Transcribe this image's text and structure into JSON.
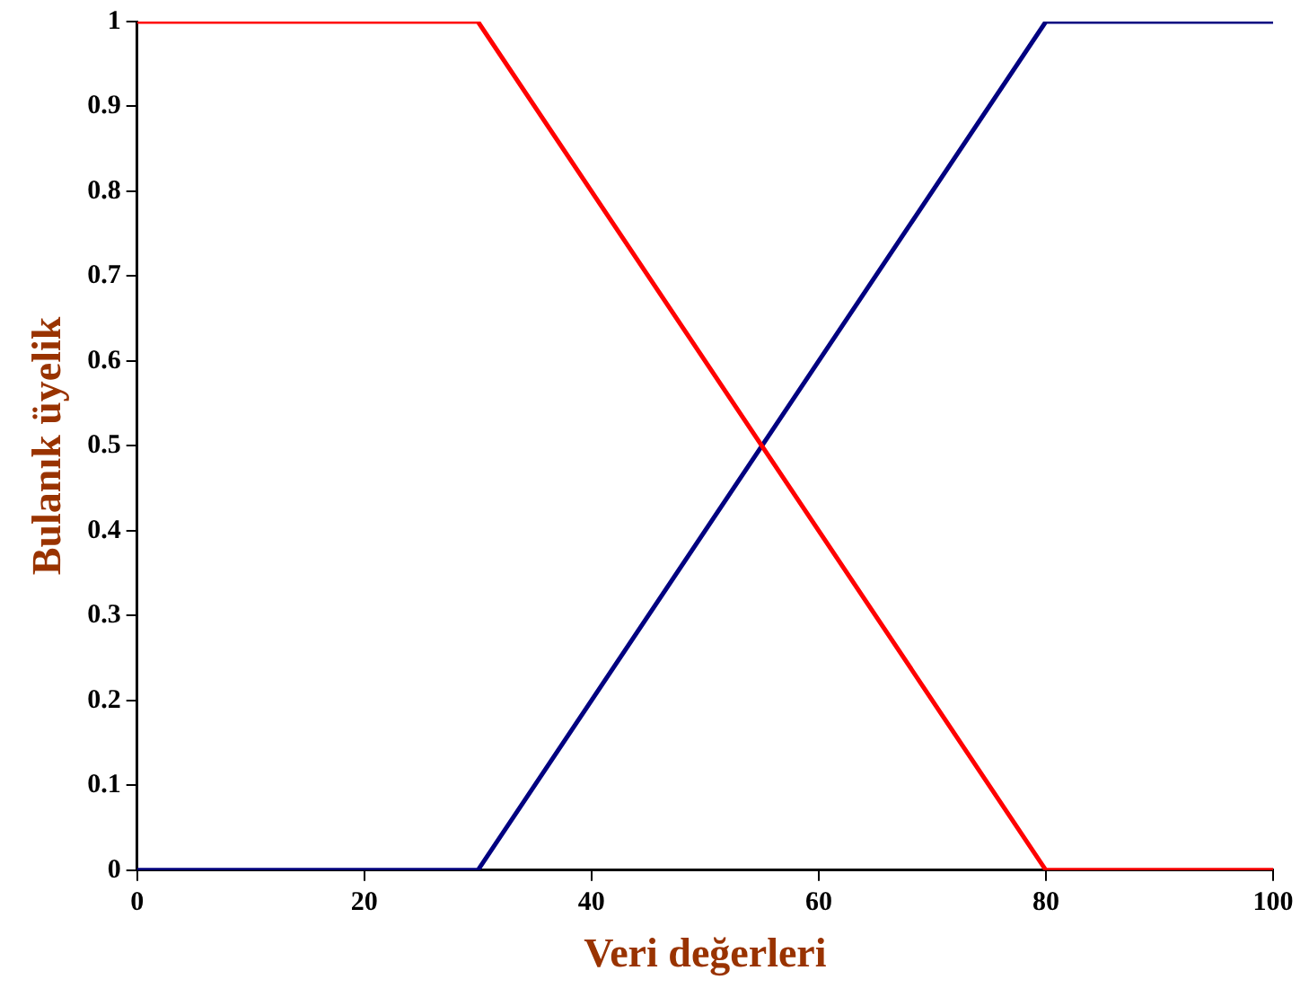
{
  "chart_data": {
    "type": "line",
    "xlabel": "Veri değerleri",
    "ylabel": "Bulanık üyelik",
    "x": [
      0,
      30,
      80,
      100
    ],
    "series": [
      {
        "color": "#ff0000",
        "values": [
          1,
          1,
          0,
          0
        ]
      },
      {
        "color": "#000080",
        "values": [
          0,
          0,
          1,
          1
        ]
      }
    ],
    "xlim": [
      0,
      100
    ],
    "xticks": [
      0,
      20,
      40,
      60,
      80,
      100
    ],
    "ylim": [
      0,
      1
    ],
    "yticks": [
      0,
      0.1,
      0.2,
      0.3,
      0.4,
      0.5,
      0.6,
      0.7,
      0.8,
      0.9,
      1
    ],
    "grid": false,
    "legend": false,
    "marker": "none",
    "line_style": "solid"
  }
}
